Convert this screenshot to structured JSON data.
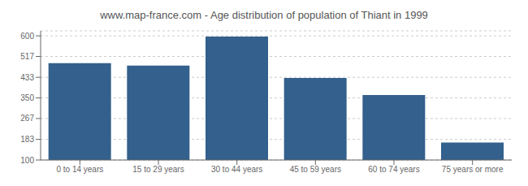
{
  "chart_data": {
    "type": "bar",
    "title": "www.map-france.com - Age distribution of population of Thiant in 1999",
    "categories": [
      "0 to 14 years",
      "15 to 29 years",
      "30 to 44 years",
      "45 to 59 years",
      "60 to 74 years",
      "75 years or more"
    ],
    "values": [
      490,
      480,
      597,
      430,
      362,
      170
    ],
    "color": "#33608c",
    "ylim": [
      100,
      620
    ],
    "yticks": [
      100,
      183,
      267,
      350,
      433,
      517,
      600
    ],
    "grid": true
  }
}
